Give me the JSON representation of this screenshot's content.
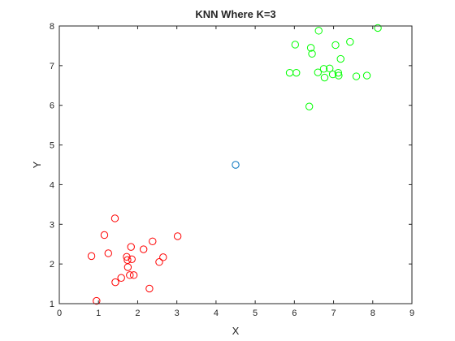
{
  "chart_data": {
    "type": "scatter",
    "title": "KNN Where K=3",
    "xlabel": "X",
    "ylabel": "Y",
    "xlim": [
      0,
      9
    ],
    "ylim": [
      1,
      8
    ],
    "xticks": [
      0,
      1,
      2,
      3,
      4,
      5,
      6,
      7,
      8,
      9
    ],
    "yticks": [
      1,
      2,
      3,
      4,
      5,
      6,
      7,
      8
    ],
    "grid": false,
    "marker": "circle-open",
    "series": [
      {
        "color": "#ff0000",
        "points": [
          [
            0.82,
            2.2
          ],
          [
            0.95,
            1.07
          ],
          [
            1.15,
            2.73
          ],
          [
            1.25,
            2.27
          ],
          [
            1.42,
            3.15
          ],
          [
            1.43,
            1.54
          ],
          [
            1.58,
            1.65
          ],
          [
            1.72,
            2.18
          ],
          [
            1.74,
            2.1
          ],
          [
            1.75,
            1.92
          ],
          [
            1.8,
            1.72
          ],
          [
            1.83,
            2.43
          ],
          [
            1.85,
            2.12
          ],
          [
            1.9,
            1.72
          ],
          [
            2.15,
            2.37
          ],
          [
            2.3,
            1.38
          ],
          [
            2.38,
            2.57
          ],
          [
            2.55,
            2.05
          ],
          [
            2.65,
            2.17
          ],
          [
            3.02,
            2.7
          ]
        ]
      },
      {
        "color": "#00ff00",
        "points": [
          [
            5.88,
            6.82
          ],
          [
            6.02,
            7.53
          ],
          [
            6.05,
            6.82
          ],
          [
            6.38,
            5.97
          ],
          [
            6.42,
            7.45
          ],
          [
            6.45,
            7.3
          ],
          [
            6.6,
            6.83
          ],
          [
            6.62,
            7.88
          ],
          [
            6.75,
            6.92
          ],
          [
            6.77,
            6.7
          ],
          [
            6.9,
            6.93
          ],
          [
            6.98,
            6.78
          ],
          [
            7.05,
            7.52
          ],
          [
            7.12,
            6.82
          ],
          [
            7.13,
            6.75
          ],
          [
            7.18,
            7.17
          ],
          [
            7.42,
            7.6
          ],
          [
            7.58,
            6.73
          ],
          [
            7.85,
            6.75
          ],
          [
            8.13,
            7.95
          ]
        ]
      },
      {
        "color": "#0072bd",
        "points": [
          [
            4.5,
            4.5
          ]
        ]
      }
    ]
  }
}
